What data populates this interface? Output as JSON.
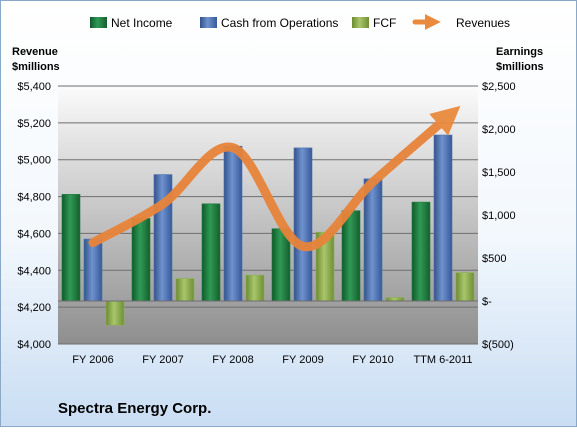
{
  "chart_data": {
    "type": "bar",
    "title": "Spectra Energy Corp.",
    "categories": [
      "FY 2006",
      "FY 2007",
      "FY 2008",
      "FY 2009",
      "FY 2010",
      "TTM 6-2011"
    ],
    "series": [
      {
        "name": "Net Income",
        "type": "bar",
        "axis": "right",
        "color": "#1e7a3e",
        "values": [
          1240,
          960,
          1130,
          840,
          1050,
          1150
        ]
      },
      {
        "name": "Cash from Operations",
        "type": "bar",
        "axis": "right",
        "color": "#4a6fae",
        "values": [
          720,
          1470,
          1800,
          1780,
          1420,
          1930
        ]
      },
      {
        "name": "FCF",
        "type": "bar",
        "axis": "right",
        "color": "#8fb04e",
        "values": [
          -280,
          260,
          300,
          800,
          40,
          330
        ]
      },
      {
        "name": "Revenues",
        "type": "line",
        "axis": "left",
        "color": "#e8843a",
        "values": [
          4550,
          4760,
          5065,
          4530,
          4880,
          5210
        ]
      }
    ],
    "left_axis": {
      "label_line1": "Revenue",
      "label_line2": "$millions",
      "range": [
        4000,
        5400
      ],
      "ticks": [
        4000,
        4200,
        4400,
        4600,
        4800,
        5000,
        5200,
        5400
      ],
      "tick_labels": [
        "$4,000",
        "$4,200",
        "$4,400",
        "$4,600",
        "$4,800",
        "$5,000",
        "$5,200",
        "$5,400"
      ]
    },
    "right_axis": {
      "label_line1": "Earnings",
      "label_line2": "$millions",
      "range": [
        -500,
        2500
      ],
      "ticks": [
        -500,
        0,
        500,
        1000,
        1500,
        2000,
        2500
      ],
      "tick_labels": [
        "$(500)",
        "$-",
        "$500",
        "$1,000",
        "$1,500",
        "$2,000",
        "$2,500"
      ]
    },
    "legend_position": "top",
    "grid": true
  }
}
